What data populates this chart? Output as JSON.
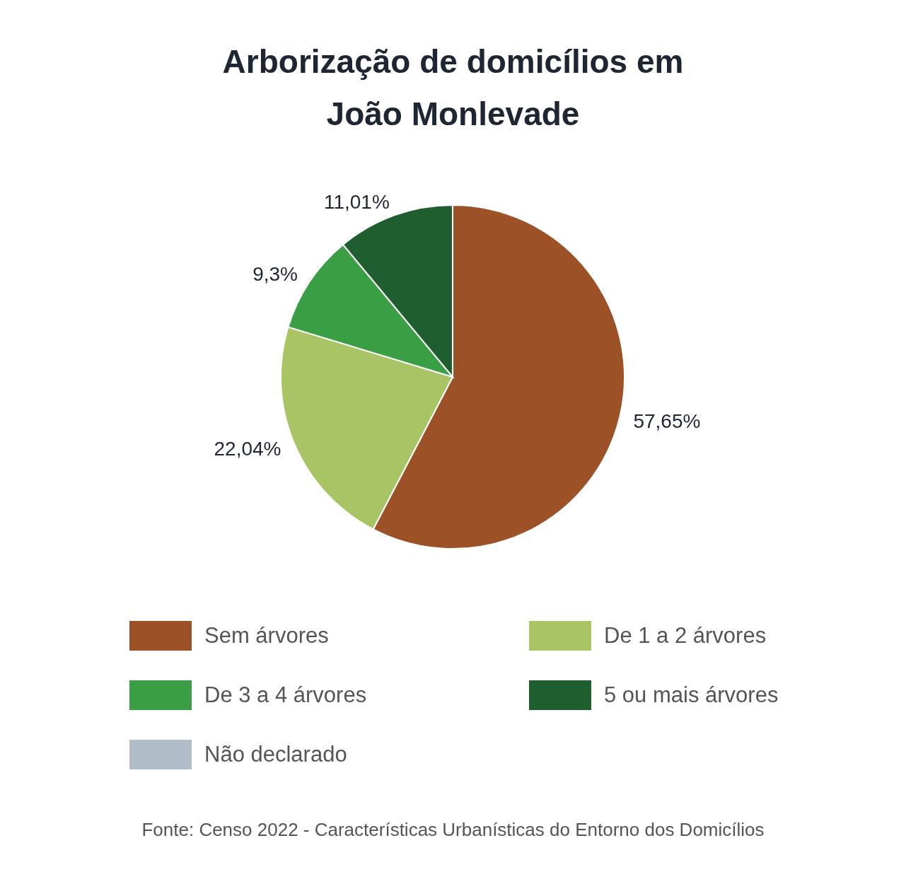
{
  "chart_data": {
    "type": "pie",
    "title": "Arborização de domicílios em João Monlevade",
    "categories": [
      "Sem árvores",
      "De 1 a 2 árvores",
      "De 3 a 4 árvores",
      "5 ou mais árvores",
      "Não declarado"
    ],
    "values": [
      57.65,
      22.04,
      9.3,
      11.01,
      0
    ],
    "value_labels": [
      "57,65%",
      "22,04%",
      "9,3%",
      "11,01%",
      null
    ],
    "colors": [
      "#9c5226",
      "#a8c464",
      "#3a9e45",
      "#1f5e2e",
      "#b0bcc8"
    ],
    "legend": "bottom",
    "annotations": [
      "Fonte: Censo 2022 - Características Urbanísticas do Entorno dos Domicílios"
    ]
  }
}
